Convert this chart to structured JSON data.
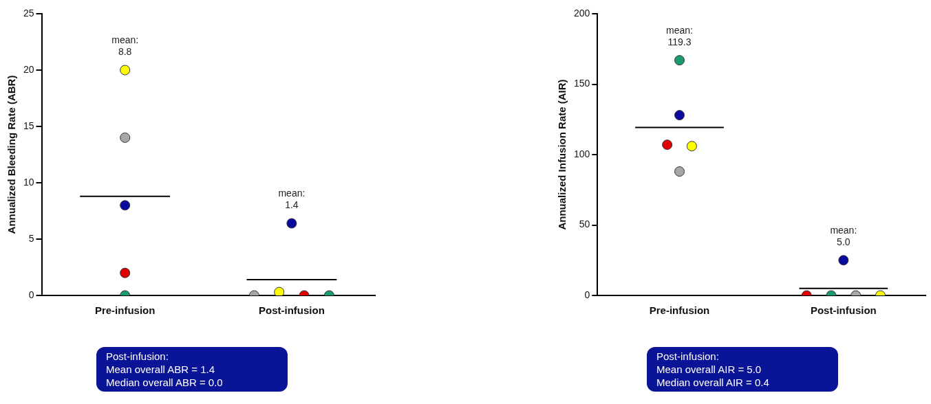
{
  "chart_data": [
    {
      "type": "scatter",
      "categories": [
        "Pre-infusion",
        "Post-infusion"
      ],
      "ylabel": "Annualized Bleeding Rate (ABR)",
      "ylim": [
        0,
        25
      ],
      "yticks": [
        0,
        5,
        10,
        15,
        20,
        25
      ],
      "grid": false,
      "legend": false,
      "marker": "circle",
      "series": [
        {
          "x": [
            "Pre-infusion",
            "Pre-infusion",
            "Pre-infusion",
            "Pre-infusion",
            "Pre-infusion",
            "Post-infusion",
            "Post-infusion",
            "Post-infusion",
            "Post-infusion",
            "Post-infusion"
          ],
          "values": [
            20,
            14,
            8,
            2,
            0,
            0,
            0.3,
            0,
            0,
            6.4
          ],
          "colors": [
            "#ffff00",
            "#a6a6a6",
            "#0a0a9e",
            "#e00000",
            "#1a9a6e",
            "#a6a6a6",
            "#ffff00",
            "#e00000",
            "#1a9a6e",
            "#0a0a9e"
          ]
        }
      ],
      "ref_lines": [
        {
          "axis": "y",
          "value": 8.8,
          "color": "#000000"
        },
        {
          "axis": "y",
          "value": 1.4,
          "color": "#000000"
        }
      ],
      "annotations": [
        "mean:\n8.8",
        "mean:\n1.4",
        "Post-infusion:\nMean overall ABR = 1.4\nMedian overall ABR = 0.0"
      ]
    },
    {
      "type": "scatter",
      "categories": [
        "Pre-infusion",
        "Post-infusion"
      ],
      "ylabel": "Annualized Infusion Rate (AIR)",
      "ylim": [
        0,
        200
      ],
      "yticks": [
        0,
        50,
        100,
        150,
        200
      ],
      "grid": false,
      "legend": false,
      "marker": "circle",
      "series": [
        {
          "x": [
            "Pre-infusion",
            "Pre-infusion",
            "Pre-infusion",
            "Pre-infusion",
            "Pre-infusion",
            "Post-infusion",
            "Post-infusion",
            "Post-infusion",
            "Post-infusion",
            "Post-infusion"
          ],
          "values": [
            167,
            128,
            107,
            106,
            88,
            0,
            0,
            0,
            0,
            25
          ],
          "colors": [
            "#1a9a6e",
            "#0a0a9e",
            "#e00000",
            "#ffff00",
            "#a6a6a6",
            "#e00000",
            "#1a9a6e",
            "#a6a6a6",
            "#ffff00",
            "#0a0a9e"
          ]
        }
      ],
      "ref_lines": [
        {
          "axis": "y",
          "value": 119.3,
          "color": "#000000"
        },
        {
          "axis": "y",
          "value": 5.0,
          "color": "#000000"
        }
      ],
      "annotations": [
        "mean:\n119.3",
        "mean:\n5.0",
        "Post-infusion:\nMean overall AIR = 5.0\nMedian overall AIR = 0.4"
      ]
    }
  ]
}
